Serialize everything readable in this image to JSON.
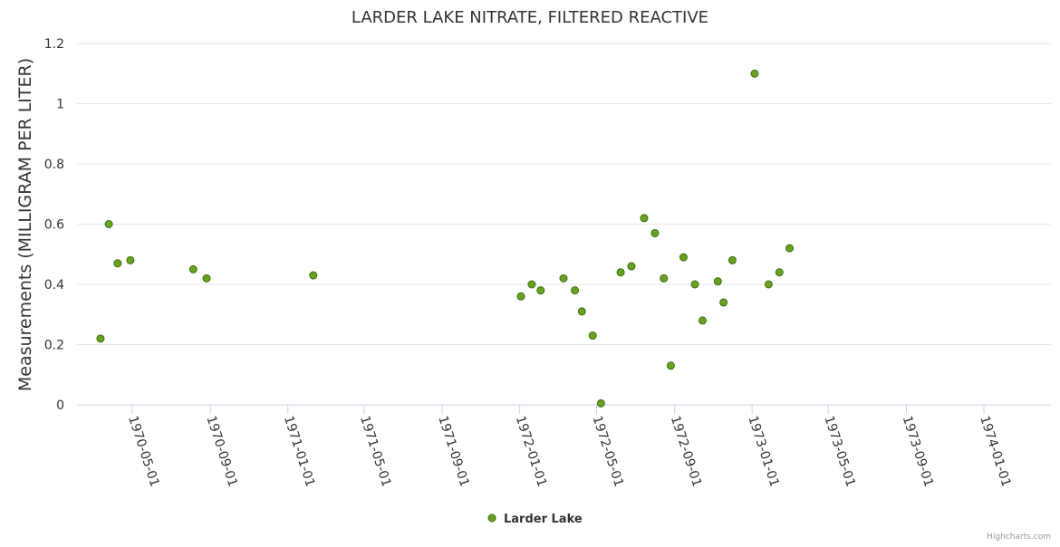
{
  "chart_data": {
    "type": "scatter",
    "title": "LARDER LAKE NITRATE, FILTERED REACTIVE",
    "xlabel": "",
    "ylabel": "Measurements (MILLIGRAM PER LITER)",
    "ylim": [
      0,
      1.2
    ],
    "y_ticks": [
      "0",
      "0.2",
      "0.4",
      "0.6",
      "0.8",
      "1",
      "1.2"
    ],
    "x_ticks": [
      "1970-05-01",
      "1970-09-01",
      "1971-01-01",
      "1971-05-01",
      "1971-09-01",
      "1972-01-01",
      "1972-05-01",
      "1972-09-01",
      "1973-01-01",
      "1973-05-01",
      "1973-09-01",
      "1974-01-01"
    ],
    "grid": true,
    "legend_position": "bottom-center",
    "series": [
      {
        "name": "Larder Lake",
        "color": "#6aa121",
        "points": [
          {
            "x": "1970-03-12",
            "y": 0.22
          },
          {
            "x": "1970-03-25",
            "y": 0.6
          },
          {
            "x": "1970-04-08",
            "y": 0.47
          },
          {
            "x": "1970-04-28",
            "y": 0.48
          },
          {
            "x": "1970-08-05",
            "y": 0.45
          },
          {
            "x": "1970-08-26",
            "y": 0.42
          },
          {
            "x": "1971-02-10",
            "y": 0.43
          },
          {
            "x": "1972-01-03",
            "y": 0.36
          },
          {
            "x": "1972-01-20",
            "y": 0.4
          },
          {
            "x": "1972-02-03",
            "y": 0.38
          },
          {
            "x": "1972-03-10",
            "y": 0.42
          },
          {
            "x": "1972-03-28",
            "y": 0.38
          },
          {
            "x": "1972-04-08",
            "y": 0.31
          },
          {
            "x": "1972-04-25",
            "y": 0.23
          },
          {
            "x": "1972-05-08",
            "y": 0.005
          },
          {
            "x": "1972-06-08",
            "y": 0.44
          },
          {
            "x": "1972-06-25",
            "y": 0.46
          },
          {
            "x": "1972-07-15",
            "y": 0.62
          },
          {
            "x": "1972-08-01",
            "y": 0.57
          },
          {
            "x": "1972-08-15",
            "y": 0.42
          },
          {
            "x": "1972-08-26",
            "y": 0.13
          },
          {
            "x": "1972-09-15",
            "y": 0.49
          },
          {
            "x": "1972-10-03",
            "y": 0.4
          },
          {
            "x": "1972-10-15",
            "y": 0.28
          },
          {
            "x": "1972-11-08",
            "y": 0.41
          },
          {
            "x": "1972-11-17",
            "y": 0.34
          },
          {
            "x": "1972-12-01",
            "y": 0.48
          },
          {
            "x": "1973-01-05",
            "y": 1.1
          },
          {
            "x": "1973-01-27",
            "y": 0.4
          },
          {
            "x": "1973-02-13",
            "y": 0.44
          },
          {
            "x": "1973-03-01",
            "y": 0.52
          }
        ]
      }
    ]
  },
  "credits": "Highcharts.com"
}
